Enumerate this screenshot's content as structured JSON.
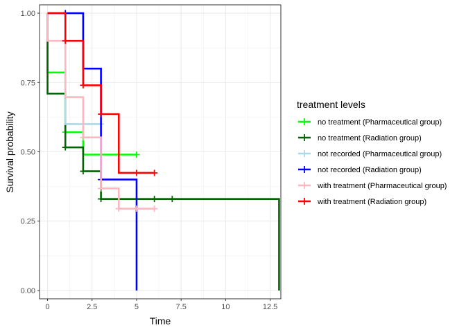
{
  "chart_data": {
    "type": "line",
    "subtype": "kaplan-meier-step",
    "xlabel": "Time",
    "ylabel": "Survival probability",
    "xlim": [
      -0.45,
      13.1
    ],
    "ylim": [
      -0.03,
      1.03
    ],
    "x_ticks": [
      0,
      2.5,
      5,
      7.5,
      10,
      12.5
    ],
    "x_tick_labels": [
      "0",
      "2.5",
      "5",
      "7.5",
      "10",
      "12.5"
    ],
    "y_ticks": [
      0,
      0.25,
      0.5,
      0.75,
      1
    ],
    "y_tick_labels": [
      "0.00",
      "0.25",
      "0.50",
      "0.75",
      "1.00"
    ],
    "grid": true,
    "legend": {
      "title": "treatment levels",
      "position": "right"
    },
    "series": [
      {
        "name": "no treatment (Pharmaceutical group)",
        "color": "#00ff00",
        "steps": [
          [
            0,
            1.0
          ],
          [
            0,
            0.786
          ],
          [
            1,
            0.571
          ],
          [
            2,
            0.49
          ],
          [
            5,
            0.49
          ]
        ],
        "censor": [
          [
            1,
            0.571
          ],
          [
            5,
            0.49
          ]
        ]
      },
      {
        "name": "no treatment (Radiation group)",
        "color": "#006400",
        "steps": [
          [
            0,
            1.0
          ],
          [
            0,
            0.71
          ],
          [
            1,
            0.516
          ],
          [
            2,
            0.43
          ],
          [
            3,
            0.33
          ],
          [
            13,
            0.33
          ],
          [
            13,
            0.0
          ]
        ],
        "censor": [
          [
            1,
            0.516
          ],
          [
            2,
            0.43
          ],
          [
            3,
            0.33
          ],
          [
            4,
            0.33
          ],
          [
            6,
            0.33
          ],
          [
            7,
            0.33
          ]
        ]
      },
      {
        "name": "not recorded (Pharmaceutical group)",
        "color": "#add8e6",
        "steps": [
          [
            0,
            1.0
          ],
          [
            1,
            0.6
          ],
          [
            3,
            0.6
          ]
        ],
        "censor": [
          [
            3,
            0.6
          ]
        ]
      },
      {
        "name": "not recorded (Radiation group)",
        "color": "#0000ff",
        "steps": [
          [
            0,
            1.0
          ],
          [
            2,
            0.8
          ],
          [
            3,
            0.4
          ],
          [
            5,
            0.4
          ],
          [
            5,
            0.0
          ]
        ],
        "censor": [
          [
            1,
            1.0
          ],
          [
            3,
            0.4
          ]
        ]
      },
      {
        "name": "with treatment (Pharmaceutical group)",
        "color": "#ffb6c1",
        "steps": [
          [
            0,
            1.0
          ],
          [
            0,
            0.9
          ],
          [
            1,
            0.697
          ],
          [
            2,
            0.552
          ],
          [
            3,
            0.368
          ],
          [
            4,
            0.295
          ],
          [
            6,
            0.295
          ]
        ],
        "censor": [
          [
            2,
            0.552
          ],
          [
            3,
            0.368
          ],
          [
            4,
            0.295
          ],
          [
            5,
            0.295
          ],
          [
            6,
            0.295
          ]
        ]
      },
      {
        "name": "with treatment (Radiation group)",
        "color": "#ff0000",
        "steps": [
          [
            0,
            1.0
          ],
          [
            1,
            0.9
          ],
          [
            2,
            0.74
          ],
          [
            3,
            0.636
          ],
          [
            4,
            0.424
          ],
          [
            6,
            0.424
          ]
        ],
        "censor": [
          [
            1,
            0.9
          ],
          [
            2,
            0.74
          ],
          [
            3,
            0.636
          ],
          [
            5,
            0.424
          ],
          [
            6,
            0.424
          ]
        ]
      }
    ]
  }
}
